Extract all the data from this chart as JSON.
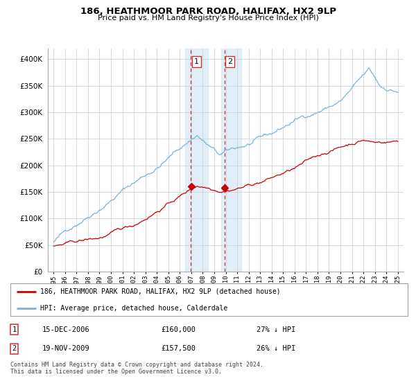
{
  "title": "186, HEATHMOOR PARK ROAD, HALIFAX, HX2 9LP",
  "subtitle": "Price paid vs. HM Land Registry's House Price Index (HPI)",
  "hpi_label": "HPI: Average price, detached house, Calderdale",
  "property_label": "186, HEATHMOOR PARK ROAD, HALIFAX, HX2 9LP (detached house)",
  "sale1_date": "15-DEC-2006",
  "sale1_price": 160000,
  "sale1_pct": "27% ↓ HPI",
  "sale2_date": "19-NOV-2009",
  "sale2_price": 157500,
  "sale2_pct": "26% ↓ HPI",
  "hpi_color": "#7ab3d4",
  "property_color": "#cc0000",
  "sale_marker_color": "#cc0000",
  "highlight_color": "#daeaf5",
  "highlight_border": "#cc3333",
  "background_color": "#ffffff",
  "grid_color": "#cccccc",
  "ylim": [
    0,
    420000
  ],
  "yticks": [
    0,
    50000,
    100000,
    150000,
    200000,
    250000,
    300000,
    350000,
    400000
  ],
  "footnote": "Contains HM Land Registry data © Crown copyright and database right 2024.\nThis data is licensed under the Open Government Licence v3.0.",
  "sale1_year": 2006.96,
  "sale2_year": 2009.88,
  "xmin": 1995.0,
  "xmax": 2025.5
}
